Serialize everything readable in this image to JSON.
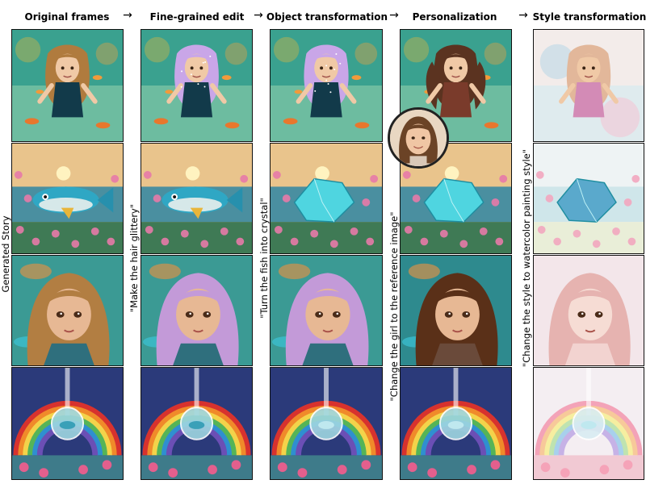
{
  "columns": [
    {
      "id": "original",
      "header": "Original frames",
      "side_label": "Generated Story",
      "style": "normal"
    },
    {
      "id": "finegrained",
      "header": "Fine-grained edit",
      "side_label": "\"Make the hair glittery\"",
      "style": "glitter"
    },
    {
      "id": "object",
      "header": "Object transformation",
      "side_label": "\"Turn the fish into crystal\"",
      "style": "crystal"
    },
    {
      "id": "personal",
      "header": "Personalization",
      "side_label": "\"Change the girl to the reference image\"",
      "style": "person"
    },
    {
      "id": "style",
      "header": "Style transformation",
      "side_label": "\"Change the style to watercolor painting style\"",
      "style": "water"
    }
  ],
  "arrows": [
    "→",
    "→",
    "→",
    "→"
  ],
  "scenes": [
    "girl-swimming",
    "fish-in-lotus-pond",
    "girl-portrait",
    "rainbow-bubble"
  ]
}
